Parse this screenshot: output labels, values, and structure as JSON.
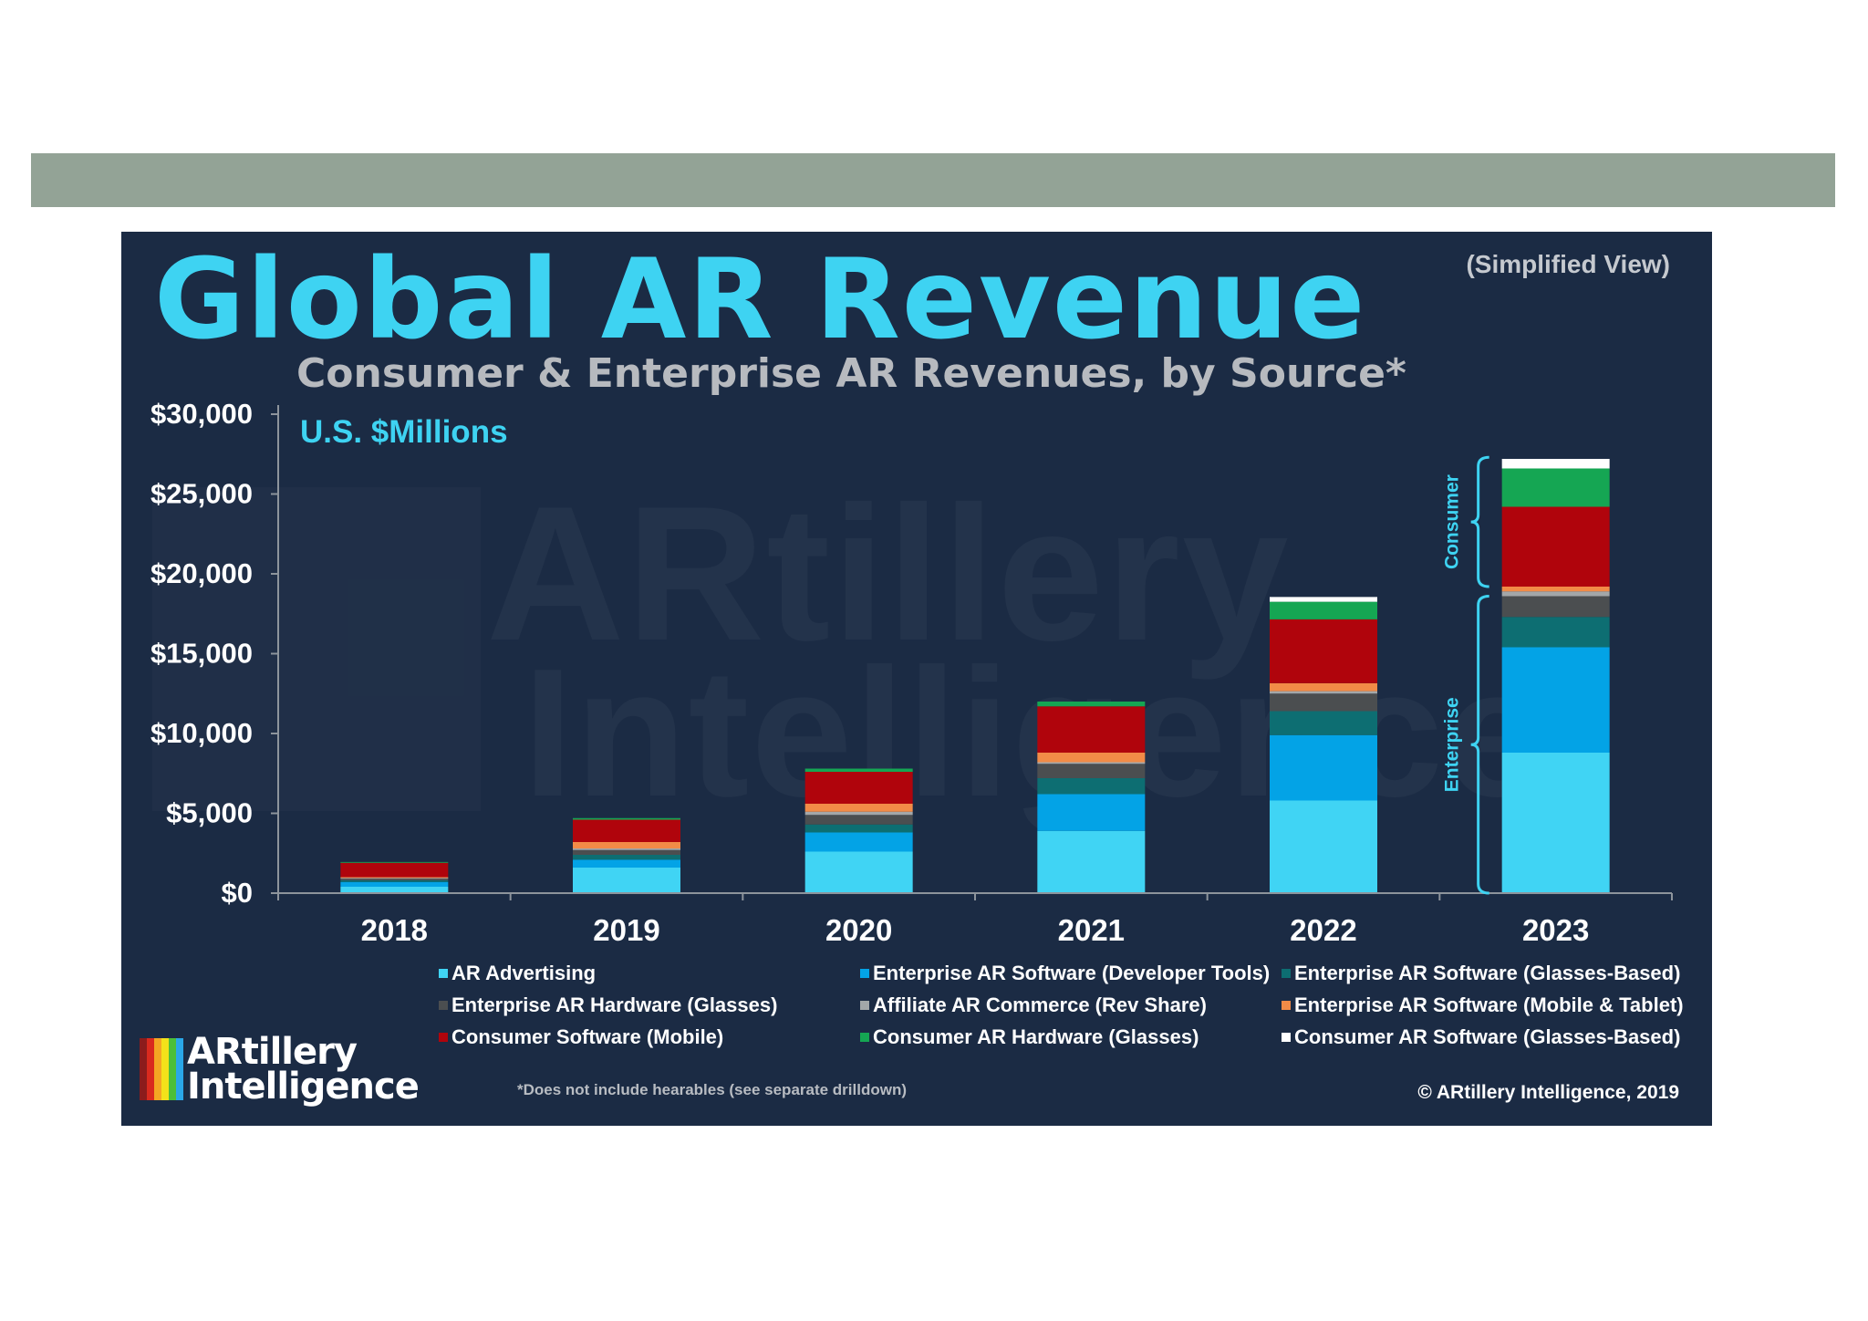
{
  "page": {
    "title": "Global AR Revenue",
    "view_note": "(Simplified View)",
    "subtitle": "Consumer & Enterprise AR Revenues, by Source*",
    "units": "U.S. $Millions",
    "footnote": "*Does not include hearables (see separate drilldown)",
    "copyright": "© ARtillery Intelligence, 2019",
    "logo_line1": "ARtillery",
    "logo_line2": "Intelligence",
    "watermark_line1": "ARtillery",
    "watermark_line2": "Intelligence"
  },
  "colors": {
    "slide_bg": "#1b2b44",
    "band": "#93a396",
    "accent": "#3ed3f2",
    "axis": "#8d949c"
  },
  "chart_data": {
    "type": "bar",
    "stacked": true,
    "title": "Global AR Revenue",
    "subtitle": "Consumer & Enterprise AR Revenues, by Source*",
    "ylabel": "U.S. $Millions",
    "xlabel": "",
    "ylim": [
      0,
      30000
    ],
    "yticks": [
      0,
      5000,
      10000,
      15000,
      20000,
      25000,
      30000
    ],
    "ytick_labels": [
      "$0",
      "$5,000",
      "$10,000",
      "$15,000",
      "$20,000",
      "$25,000",
      "$30,000"
    ],
    "categories": [
      "2018",
      "2019",
      "2020",
      "2021",
      "2022",
      "2023"
    ],
    "series": [
      {
        "name": "AR Advertising",
        "color": "#40d4f4",
        "group": "Enterprise",
        "values": [
          400,
          1600,
          2600,
          3900,
          5800,
          8800
        ]
      },
      {
        "name": "Enterprise AR Software (Developer Tools)",
        "color": "#03a3e6",
        "group": "Enterprise",
        "values": [
          300,
          500,
          1200,
          2300,
          4100,
          6600
        ]
      },
      {
        "name": "Enterprise AR Software (Glasses-Based)",
        "color": "#0d6e72",
        "group": "Enterprise",
        "values": [
          100,
          300,
          500,
          1000,
          1500,
          1900
        ]
      },
      {
        "name": "Enterprise AR Hardware (Glasses)",
        "color": "#4b4e50",
        "group": "Enterprise",
        "values": [
          100,
          300,
          600,
          900,
          1100,
          1300
        ]
      },
      {
        "name": "Affiliate AR Commerce (Rev Share)",
        "color": "#a3a7a9",
        "group": "Consumer",
        "values": [
          50,
          100,
          200,
          100,
          150,
          300
        ]
      },
      {
        "name": "Enterprise AR Software (Mobile & Tablet)",
        "color": "#f28b47",
        "group": "Consumer",
        "values": [
          50,
          400,
          500,
          600,
          500,
          300
        ]
      },
      {
        "name": "Consumer Software (Mobile)",
        "color": "#b0040c",
        "group": "Consumer",
        "values": [
          900,
          1400,
          2000,
          2900,
          4000,
          5000
        ]
      },
      {
        "name": "Consumer AR Hardware (Glasses)",
        "color": "#15a653",
        "group": "Consumer",
        "values": [
          50,
          100,
          200,
          300,
          1100,
          2400
        ]
      },
      {
        "name": "Consumer AR Software (Glasses-Based)",
        "color": "#ffffff",
        "group": "Consumer",
        "values": [
          0,
          0,
          0,
          0,
          300,
          600
        ]
      }
    ],
    "legend_order": [
      0,
      1,
      2,
      3,
      4,
      5,
      6,
      7,
      8
    ],
    "legend_position": "bottom",
    "grid": false,
    "annotations": [
      {
        "text": "Consumer",
        "applies_to": "2023",
        "range": [
          19200,
          27300
        ]
      },
      {
        "text": "Enterprise",
        "applies_to": "2023",
        "range": [
          0,
          18600
        ]
      }
    ]
  }
}
